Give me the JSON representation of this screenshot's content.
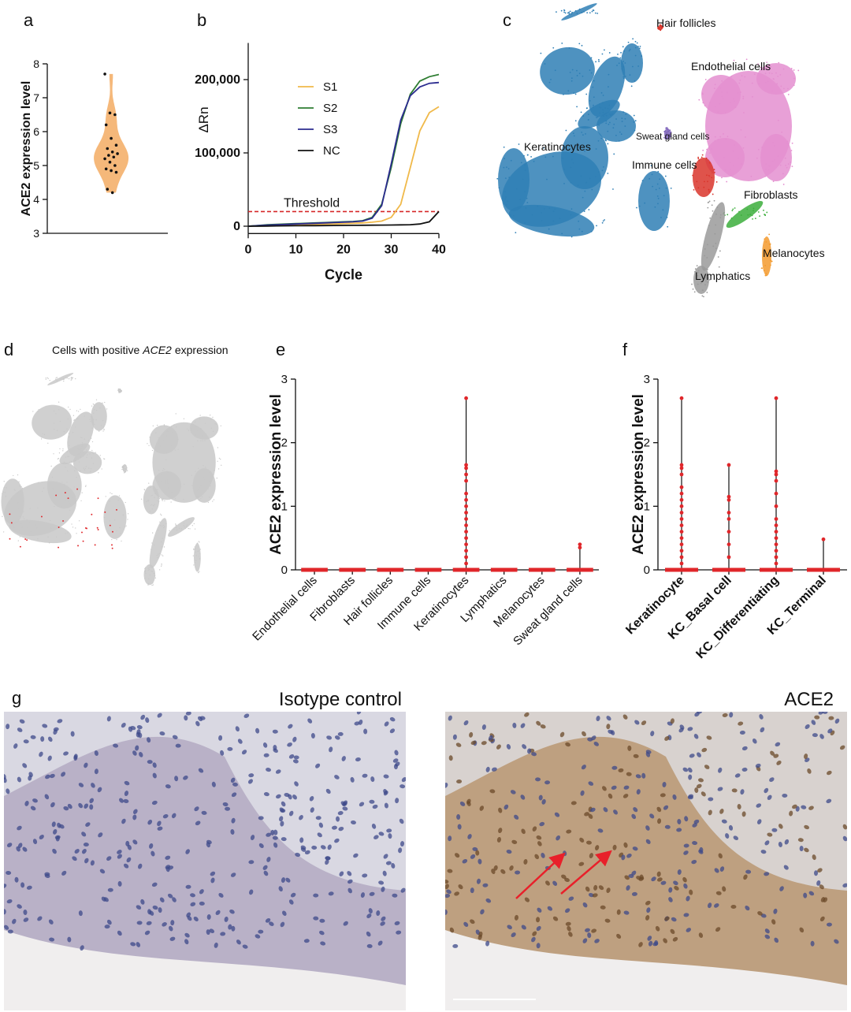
{
  "panel_labels": [
    "a",
    "b",
    "c",
    "d",
    "e",
    "f",
    "g"
  ],
  "chart_data": [
    {
      "type": "violin",
      "ylabel": "ACE2 expression level",
      "values": [
        7.7,
        6.55,
        6.5,
        6.2,
        5.8,
        5.6,
        5.5,
        5.4,
        5.35,
        5.3,
        5.25,
        5.2,
        5.1,
        5.0,
        4.9,
        4.85,
        4.8,
        4.3,
        4.2
      ],
      "ylim": [
        3,
        8
      ],
      "yticks": [
        3,
        4,
        5,
        6,
        7,
        8
      ],
      "color": "#f5b87a",
      "point_color": "#111111"
    },
    {
      "type": "line",
      "ylabel": "ΔRn",
      "xlabel": "Cycle",
      "x": [
        0,
        2,
        4,
        6,
        8,
        10,
        12,
        14,
        16,
        18,
        20,
        22,
        24,
        26,
        28,
        30,
        32,
        34,
        36,
        38,
        40
      ],
      "series": [
        {
          "name": "S1",
          "color": "#f0b94a",
          "values": [
            0,
            500,
            1000,
            1500,
            1800,
            2000,
            2200,
            2500,
            2800,
            3000,
            3500,
            4000,
            4500,
            5500,
            7000,
            12000,
            30000,
            80000,
            130000,
            155000,
            163000
          ]
        },
        {
          "name": "S2",
          "color": "#2e7d32",
          "values": [
            0,
            1000,
            2000,
            2500,
            3000,
            3500,
            4000,
            4500,
            5000,
            5500,
            6000,
            6500,
            7500,
            12000,
            30000,
            80000,
            140000,
            180000,
            198000,
            204000,
            207000
          ]
        },
        {
          "name": "S3",
          "color": "#2b2b8f",
          "values": [
            0,
            800,
            1500,
            2000,
            2500,
            3000,
            3500,
            4000,
            4500,
            5000,
            5500,
            6000,
            7000,
            11000,
            28000,
            85000,
            145000,
            178000,
            190000,
            195000,
            196000
          ]
        },
        {
          "name": "NC",
          "color": "#111111",
          "values": [
            0,
            0,
            200,
            400,
            500,
            600,
            700,
            800,
            900,
            1000,
            1100,
            1200,
            1300,
            1400,
            1500,
            1600,
            1800,
            2000,
            3000,
            6000,
            20000
          ]
        }
      ],
      "xlim": [
        0,
        40
      ],
      "xticks": [
        0,
        10,
        20,
        30,
        40
      ],
      "ylim": [
        -10000,
        250000
      ],
      "yticks": [
        0,
        {
          "value": 100000,
          "label": "100,000"
        },
        {
          "value": 200000,
          "label": "200,000"
        }
      ],
      "threshold": 20000,
      "threshold_label": "Threshold",
      "threshold_color": "#d62728"
    },
    {
      "type": "strip",
      "ylabel": "ACE2 expression level",
      "categories": [
        "Endothelial cells",
        "Fibroblasts",
        "Hair follicles",
        "Immune cells",
        "Keratinocytes",
        "Lymphatics",
        "Melanocytes",
        "Sweat gland cells"
      ],
      "values": [
        [
          0
        ],
        [
          0
        ],
        [
          0
        ],
        [
          0
        ],
        [
          2.7,
          1.65,
          1.6,
          1.5,
          1.4,
          1.2,
          1.1,
          1.0,
          0.9,
          0.8,
          0.7,
          0.6,
          0.5,
          0.4,
          0.3,
          0.2,
          0.1,
          0
        ],
        [
          0
        ],
        [
          0
        ],
        [
          0.4,
          0.35,
          0
        ]
      ],
      "ylim": [
        0,
        3
      ],
      "yticks": [
        0,
        1,
        2,
        3
      ],
      "color": "#e0262a",
      "bold_labels": false
    },
    {
      "type": "strip",
      "ylabel": "ACE2 expression level",
      "categories": [
        "Keratinocyte",
        "KC_Basal cell",
        "KC_Differentiating",
        "KC_Terminal"
      ],
      "values": [
        [
          2.7,
          1.65,
          1.6,
          1.5,
          1.3,
          1.2,
          1.1,
          1.0,
          0.9,
          0.8,
          0.7,
          0.6,
          0.5,
          0.4,
          0.3,
          0.2,
          0.1,
          0
        ],
        [
          1.65,
          1.15,
          1.1,
          0.9,
          0.8,
          0.6,
          0.4,
          0.2,
          0
        ],
        [
          2.7,
          1.55,
          1.5,
          1.4,
          1.2,
          1.0,
          0.8,
          0.7,
          0.6,
          0.5,
          0.4,
          0.3,
          0.2,
          0.1,
          0
        ],
        [
          0.48,
          0
        ]
      ],
      "ylim": [
        0,
        3
      ],
      "yticks": [
        0,
        1,
        2,
        3
      ],
      "color": "#e0262a",
      "bold_labels": true
    }
  ],
  "umap": {
    "labels": [
      "Hair follicles",
      "Endothelial cells",
      "Keratinocytes",
      "Sweat gland cells",
      "Immune cells",
      "Fibroblasts",
      "Melanocytes",
      "Lymphatics"
    ]
  },
  "positive_map": {
    "title": [
      "Cells with positive",
      "ACE2",
      "expression"
    ]
  },
  "micrographs": {
    "titles": [
      "Isotype control",
      "ACE2"
    ]
  }
}
